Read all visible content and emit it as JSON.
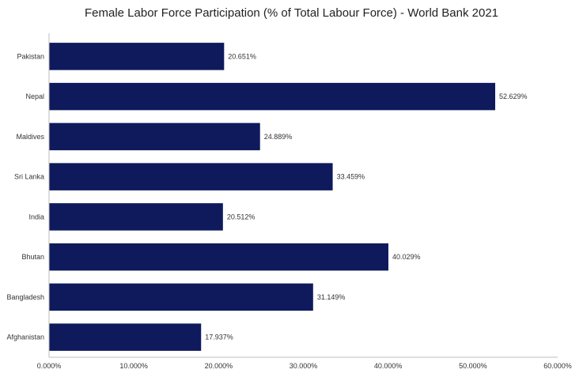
{
  "chart_data": {
    "type": "bar",
    "orientation": "horizontal",
    "title": "Female Labor Force Participation  (% of Total Labour Force) - World Bank 2021",
    "xlabel": "",
    "ylabel": "",
    "categories": [
      "Pakistan",
      "Nepal",
      "Maldives",
      "Sri Lanka",
      "India",
      "Bhutan",
      "Bangladesh",
      "Afghanistan"
    ],
    "values": [
      20.651,
      52.629,
      24.889,
      33.459,
      20.512,
      40.029,
      31.149,
      17.937
    ],
    "value_labels": [
      "20.651%",
      "52.629%",
      "24.889%",
      "33.459%",
      "20.512%",
      "40.029%",
      "31.149%",
      "17.937%"
    ],
    "xlim": [
      0,
      60
    ],
    "xticks": [
      0,
      10,
      20,
      30,
      40,
      50,
      60
    ],
    "xtick_labels": [
      "0.000%",
      "10.000%",
      "20.000%",
      "30.000%",
      "40.000%",
      "50.000%",
      "60.000%"
    ],
    "grid": false,
    "bar_color": "#0e1a5c"
  }
}
